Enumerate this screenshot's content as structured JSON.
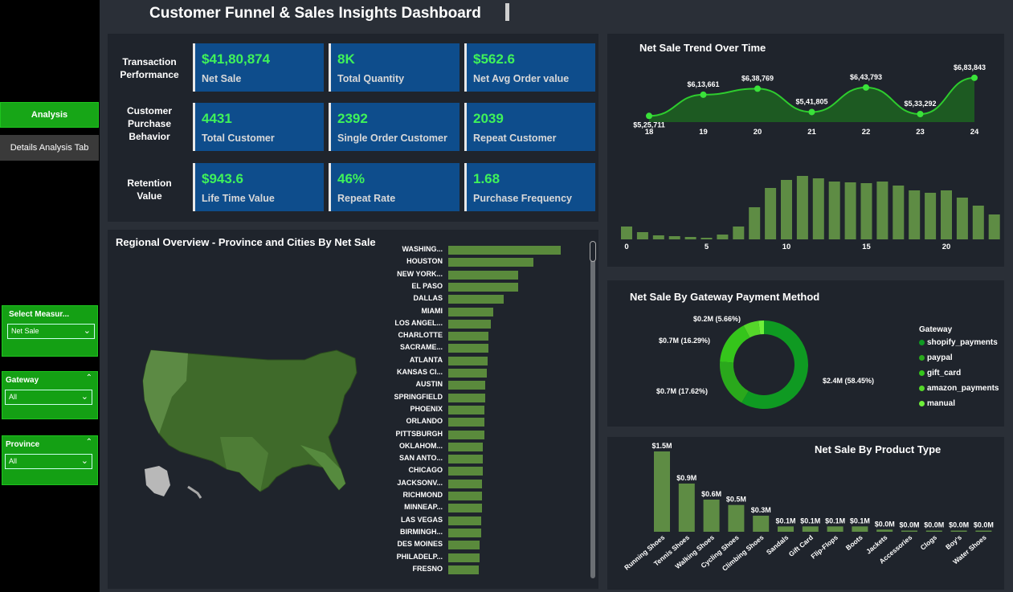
{
  "nav": {
    "analysis_label": "Analysis",
    "details_label": "Details Analysis Tab"
  },
  "filters": {
    "measure": {
      "label": "Select Measur...",
      "value": "Net Sale"
    },
    "gateway": {
      "label": "Gateway",
      "value": "All"
    },
    "province": {
      "label": "Province",
      "value": "All"
    }
  },
  "header": {
    "title": "Customer Funnel & Sales Insights Dashboard"
  },
  "kpis": {
    "row_labels": [
      "Transaction\nPerformance",
      "Customer\nPurchase\nBehavior",
      "Retention\nValue"
    ],
    "cards": [
      {
        "value": "$41,80,874",
        "caption": "Net Sale"
      },
      {
        "value": "8K",
        "caption": "Total Quantity"
      },
      {
        "value": "$562.6",
        "caption": "Net Avg Order value"
      },
      {
        "value": "4431",
        "caption": "Total Customer"
      },
      {
        "value": "2392",
        "caption": "Single Order Customer"
      },
      {
        "value": "2039",
        "caption": "Repeat Customer"
      },
      {
        "value": "$943.6",
        "caption": "Life Time Value"
      },
      {
        "value": "46%",
        "caption": "Repeat Rate"
      },
      {
        "value": "1.68",
        "caption": "Purchase Frequency"
      }
    ]
  },
  "regional": {
    "title": "Regional Overview - Province and Cities By Net Sale",
    "cities": [
      "WASHING...",
      "HOUSTON",
      "NEW YORK...",
      "EL PASO",
      "DALLAS",
      "MIAMI",
      "LOS ANGEL...",
      "CHARLOTTE",
      "SACRAME...",
      "ATLANTA",
      "KANSAS CI...",
      "AUSTIN",
      "SPRINGFIELD",
      "PHOENIX",
      "ORLANDO",
      "PITTSBURGH",
      "OKLAHOM...",
      "SAN ANTO...",
      "CHICAGO",
      "JACKSONV...",
      "RICHMOND",
      "MINNEAP...",
      "LAS VEGAS",
      "BIRMINGH...",
      "DES MOINES",
      "PHILADELP...",
      "FRESNO"
    ],
    "city_values": [
      100,
      76,
      62,
      62,
      49,
      40,
      38,
      36,
      36,
      35,
      34,
      33,
      33,
      32,
      32,
      32,
      31,
      31,
      31,
      30,
      30,
      30,
      29,
      29,
      28,
      28,
      27
    ]
  },
  "trend": {
    "title": "Net Sale Trend Over Time",
    "colors": {
      "line": "#2ecc2e",
      "area": "#1d5a22"
    }
  },
  "gateway": {
    "title": "Net Sale By Gateway Payment Method",
    "legend_title": "Gateway",
    "slices": [
      {
        "name": "shopify_payments",
        "label": "$2.4M (58.45%)",
        "color": "#0f9a22"
      },
      {
        "name": "paypal",
        "label": "$0.7M (17.62%)",
        "color": "#2aa81c"
      },
      {
        "name": "gift_card",
        "label": "$0.7M (16.29%)",
        "color": "#35c51b"
      },
      {
        "name": "amazon_payments",
        "label": "$0.2M (5.66%)",
        "color": "#55d62a"
      },
      {
        "name": "manual",
        "label": "",
        "color": "#6ef03a"
      }
    ]
  },
  "products": {
    "title": "Net Sale By Product Type"
  },
  "chart_data": [
    {
      "type": "area",
      "title": "Net Sale Trend Over Time",
      "x": [
        18,
        19,
        20,
        21,
        22,
        23,
        24
      ],
      "values": [
        525711,
        613661,
        638769,
        541805,
        643793,
        533292,
        683843
      ],
      "labels": [
        "$5,25,711",
        "$6,13,661",
        "$6,38,769",
        "$5,41,805",
        "$6,43,793",
        "$5,33,292",
        "$6,83,843"
      ]
    },
    {
      "type": "bar",
      "x": [
        0,
        1,
        2,
        3,
        4,
        5,
        6,
        7,
        8,
        9,
        10,
        11,
        12,
        13,
        14,
        15,
        16,
        17,
        18,
        19,
        20,
        21,
        22,
        23
      ],
      "values": [
        16,
        9,
        5,
        4,
        3,
        2,
        6,
        16,
        40,
        64,
        74,
        79,
        76,
        72,
        71,
        70,
        72,
        67,
        61,
        58,
        61,
        52,
        42,
        31
      ],
      "xticks": [
        0,
        5,
        10,
        15,
        20
      ]
    },
    {
      "type": "pie",
      "title": "Net Sale By Gateway Payment Method",
      "categories": [
        "shopify_payments",
        "paypal",
        "gift_card",
        "amazon_payments",
        "manual"
      ],
      "values": [
        58.45,
        17.62,
        16.29,
        5.66,
        1.98
      ]
    },
    {
      "type": "bar",
      "title": "Net Sale By Product Type",
      "categories": [
        "Running Shoes",
        "Tennis Shoes",
        "Walking Shoes",
        "Cycling Shoes",
        "Climbing Shoes",
        "Sandals",
        "Gift Card",
        "Flip-Flops",
        "Boots",
        "Jackets",
        "Accessories",
        "Clogs",
        "Boy's",
        "Water Shoes"
      ],
      "values": [
        1.5,
        0.9,
        0.6,
        0.5,
        0.3,
        0.1,
        0.1,
        0.1,
        0.1,
        0.04,
        0.02,
        0.01,
        0.01,
        0.01
      ],
      "labels": [
        "$1.5M",
        "$0.9M",
        "$0.6M",
        "$0.5M",
        "$0.3M",
        "$0.1M",
        "$0.1M",
        "$0.1M",
        "$0.1M",
        "$0.0M",
        "$0.0M",
        "$0.0M",
        "$0.0M",
        "$0.0M"
      ]
    }
  ]
}
